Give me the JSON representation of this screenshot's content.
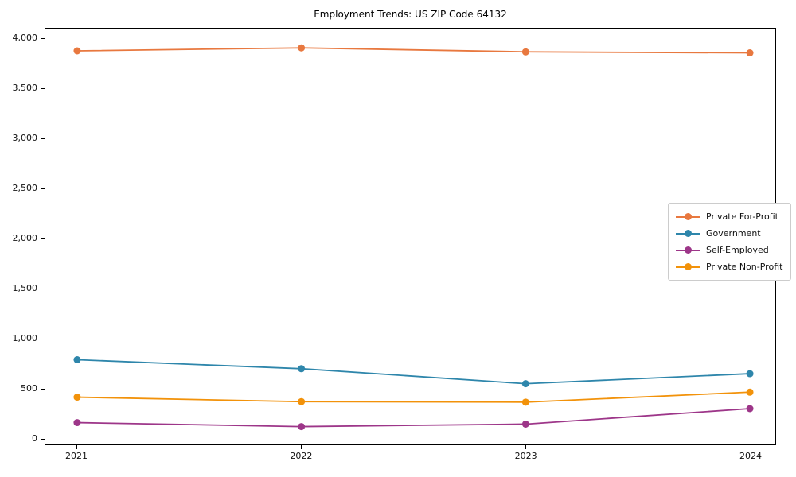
{
  "chart_data": {
    "type": "line",
    "title": "Employment Trends: US ZIP Code 64132",
    "xlabel": "",
    "ylabel": "",
    "x": [
      "2021",
      "2022",
      "2023",
      "2024"
    ],
    "series": [
      {
        "name": "Private For-Profit",
        "color": "#E8783F",
        "values": [
          3880,
          3910,
          3870,
          3860
        ]
      },
      {
        "name": "Government",
        "color": "#2E86AB",
        "values": [
          785,
          695,
          545,
          645
        ]
      },
      {
        "name": "Self-Employed",
        "color": "#9D3689",
        "values": [
          155,
          115,
          140,
          295
        ]
      },
      {
        "name": "Private Non-Profit",
        "color": "#F2920A",
        "values": [
          410,
          365,
          360,
          460
        ]
      }
    ],
    "ylim": [
      0,
      4000
    ],
    "y_tick_values": [
      0,
      500,
      1000,
      1500,
      2000,
      2500,
      3000,
      3500,
      4000
    ],
    "y_tick_labels": [
      "0",
      "500",
      "1,000",
      "1,500",
      "2,000",
      "2,500",
      "3,000",
      "3,500",
      "4,000"
    ],
    "grid": false,
    "legend_position": "center-right",
    "frame": "full-box"
  }
}
